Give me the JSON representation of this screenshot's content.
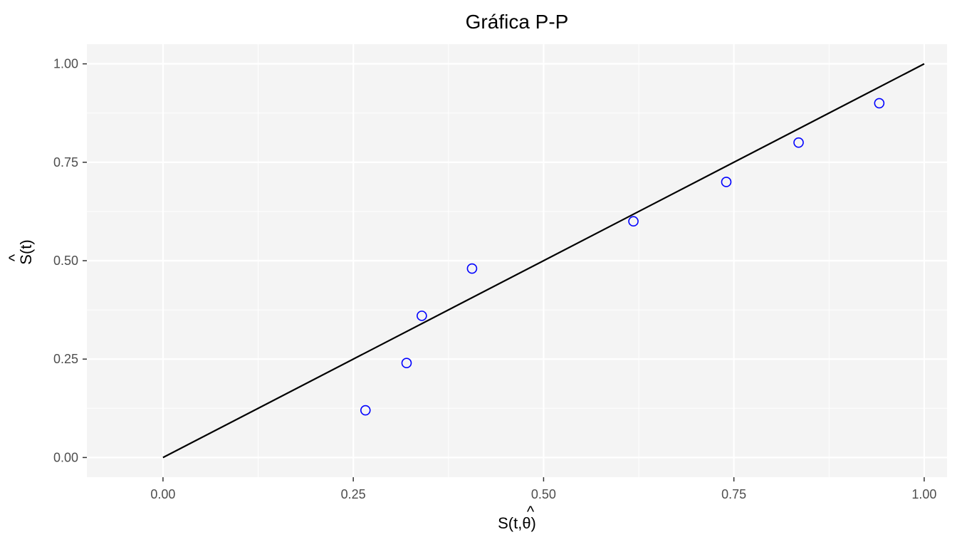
{
  "chart_data": {
    "type": "scatter",
    "title": "Gráfica P-P",
    "xlabel": "S(t,θ)",
    "xlabel_hat_char": "^",
    "ylabel": "S(t)",
    "ylabel_hat_char": "^",
    "xlim": [
      -0.1,
      1.03
    ],
    "ylim": [
      -0.05,
      1.05
    ],
    "x_ticks": [
      0.0,
      0.25,
      0.5,
      0.75,
      1.0
    ],
    "x_tick_labels": [
      "0.00",
      "0.25",
      "0.50",
      "0.75",
      "1.00"
    ],
    "y_ticks": [
      0.0,
      0.25,
      0.5,
      0.75,
      1.0
    ],
    "y_tick_labels": [
      "0.00",
      "0.25",
      "0.50",
      "0.75",
      "1.00"
    ],
    "grid": true,
    "background_color": "#f4f4f4",
    "grid_color": "#ffffff",
    "point_color": "#0000ff",
    "line_color": "#000000",
    "points": [
      {
        "x": 0.266,
        "y": 0.12
      },
      {
        "x": 0.32,
        "y": 0.24
      },
      {
        "x": 0.34,
        "y": 0.36
      },
      {
        "x": 0.406,
        "y": 0.48
      },
      {
        "x": 0.618,
        "y": 0.6
      },
      {
        "x": 0.74,
        "y": 0.7
      },
      {
        "x": 0.835,
        "y": 0.8
      },
      {
        "x": 0.941,
        "y": 0.9
      }
    ],
    "reference_line": {
      "x": [
        0.0,
        1.0
      ],
      "y": [
        0.0,
        1.0
      ]
    }
  }
}
